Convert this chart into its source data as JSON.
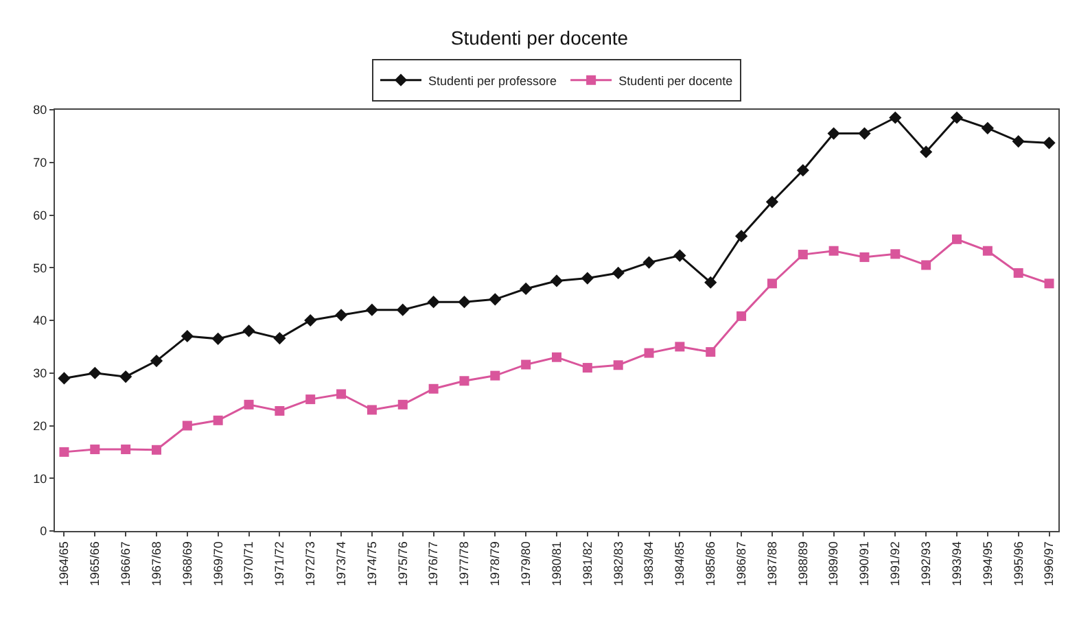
{
  "chart_data": {
    "type": "line",
    "title": "Studenti per docente",
    "categories": [
      "1964/65",
      "1965/66",
      "1966/67",
      "1967/68",
      "1968/69",
      "1969/70",
      "1970/71",
      "1971/72",
      "1972/73",
      "1973/74",
      "1974/75",
      "1975/76",
      "1976/77",
      "1977/78",
      "1978/79",
      "1979/80",
      "1980/81",
      "1981/82",
      "1982/83",
      "1983/84",
      "1984/85",
      "1985/86",
      "1986/87",
      "1987/88",
      "1988/89",
      "1989/90",
      "1990/91",
      "1991/92",
      "1992/93",
      "1993/94",
      "1994/95",
      "1995/96",
      "1996/97"
    ],
    "series": [
      {
        "name": "Studenti per professore",
        "color": "#111111",
        "marker": "diamond",
        "values": [
          29,
          30,
          29.3,
          32.3,
          37,
          36.5,
          38,
          36.6,
          40,
          41,
          42,
          42,
          43.5,
          43.5,
          44,
          46,
          47.5,
          48,
          49,
          51,
          52.3,
          47.2,
          56,
          62.5,
          68.5,
          75.5,
          75.5,
          78.5,
          72,
          78.5,
          76.5,
          74,
          73.7
        ]
      },
      {
        "name": "Studenti per docente",
        "color": "#d9559b",
        "marker": "square",
        "values": [
          15,
          15.5,
          15.5,
          15.4,
          20,
          21,
          24,
          22.8,
          25,
          26,
          23,
          24,
          27,
          28.5,
          29.5,
          31.6,
          33,
          31,
          31.5,
          33.8,
          35,
          34,
          40.8,
          47,
          52.5,
          53.2,
          52,
          52.6,
          50.5,
          55.4,
          53.2,
          49,
          47
        ]
      }
    ],
    "ylim": [
      0,
      80
    ],
    "yticks": [
      0,
      10,
      20,
      30,
      40,
      50,
      60,
      70,
      80
    ],
    "grid": false,
    "legend": "top"
  }
}
